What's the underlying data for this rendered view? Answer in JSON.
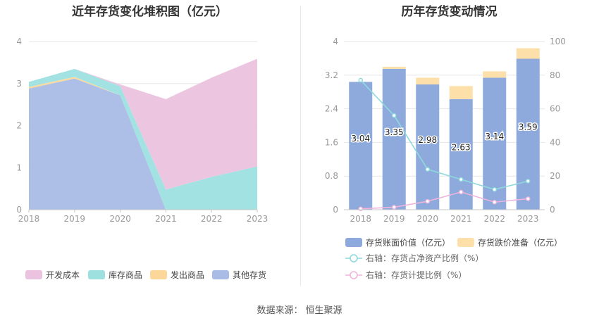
{
  "source_label": "数据来源：",
  "source_name": "恒生聚源",
  "colors": {
    "kaifa": "#ebc3de",
    "kucun": "#9ee0e0",
    "fachu": "#fbd89a",
    "qita": "#a9bce6",
    "bar_value": "#8eaadc",
    "bar_reserve": "#fddfa9",
    "ratio_line": "#8ed9dc",
    "provision_line": "#eeb4dc",
    "axis_text": "#999999",
    "grid": "#e6e6e6"
  },
  "chart_data": [
    {
      "type": "area",
      "stacked": true,
      "title": "近年存货变化堆积图（亿元）",
      "categories": [
        "2018",
        "2019",
        "2020",
        "2021",
        "2022",
        "2023"
      ],
      "ylim": [
        0,
        4
      ],
      "yticks": [
        "0",
        "1",
        "2",
        "3",
        "4"
      ],
      "grid": true,
      "legend_position": "bottom",
      "series": [
        {
          "name": "其他存货",
          "color_key": "qita",
          "values": [
            2.88,
            3.12,
            2.72,
            0.0,
            0.0,
            0.0
          ]
        },
        {
          "name": "发出商品",
          "color_key": "fachu",
          "values": [
            0.04,
            0.04,
            0.0,
            0.0,
            0.0,
            0.0
          ]
        },
        {
          "name": "库存商品",
          "color_key": "kucun",
          "values": [
            0.12,
            0.19,
            0.22,
            0.48,
            0.78,
            1.03
          ]
        },
        {
          "name": "开发成本",
          "color_key": "kaifa",
          "values": [
            0.0,
            0.0,
            0.04,
            2.15,
            2.36,
            2.56
          ]
        }
      ],
      "legend_order": [
        "开发成本",
        "库存商品",
        "发出商品",
        "其他存货"
      ]
    },
    {
      "type": "bar",
      "stacked": true,
      "title": "历年存货变动情况",
      "categories": [
        "2018",
        "2019",
        "2020",
        "2021",
        "2022",
        "2023"
      ],
      "ylim": [
        0,
        4
      ],
      "yticks": [
        "0",
        "0.8",
        "1.6",
        "2.4",
        "3.2",
        "4"
      ],
      "y2lim": [
        0,
        100
      ],
      "y2ticks": [
        "0",
        "20",
        "40",
        "60",
        "80",
        "100"
      ],
      "grid": true,
      "legend_position": "bottom",
      "series": [
        {
          "name": "存货账面价值（亿元）",
          "color_key": "bar_value",
          "values": [
            3.04,
            3.35,
            2.98,
            2.63,
            3.14,
            3.59
          ],
          "labels": [
            "3.04",
            "3.35",
            "2.98",
            "2.63",
            "3.14",
            "3.59"
          ]
        },
        {
          "name": "存货跌价准备（亿元）",
          "color_key": "bar_reserve",
          "values": [
            0.0,
            0.05,
            0.16,
            0.31,
            0.15,
            0.25
          ]
        },
        {
          "name": "右轴：存货占净资产比例（%）",
          "color_key": "ratio_line",
          "axis": "right",
          "type": "line",
          "values": [
            77,
            56,
            24,
            18,
            12,
            17
          ]
        },
        {
          "name": "右轴：存货计提比例（%）",
          "color_key": "provision_line",
          "axis": "right",
          "type": "line",
          "values": [
            0.5,
            1.5,
            5,
            10.5,
            4.5,
            6.5
          ]
        }
      ]
    }
  ]
}
